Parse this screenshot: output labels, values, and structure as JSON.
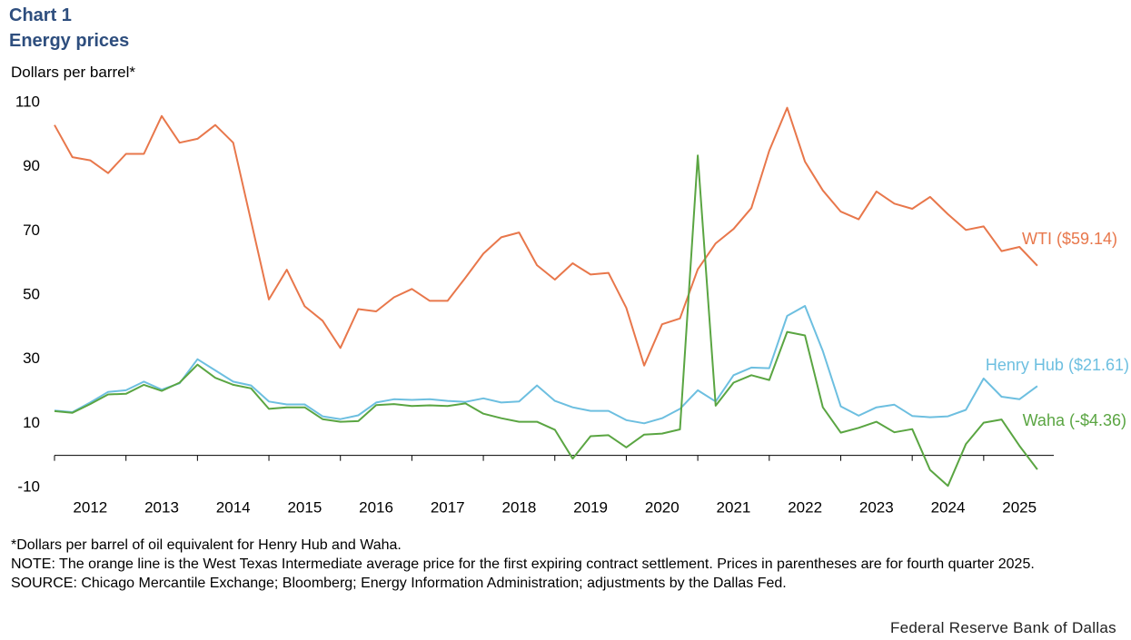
{
  "chart_data": {
    "type": "line",
    "title": "Chart 1",
    "subtitle": "Energy prices",
    "ylabel": "Dollars per barrel*",
    "categories": [
      "2012",
      null,
      null,
      null,
      "2013",
      null,
      null,
      null,
      "2014",
      null,
      null,
      null,
      "2015",
      null,
      null,
      null,
      "2016",
      null,
      null,
      null,
      "2017",
      null,
      null,
      null,
      "2018",
      null,
      null,
      null,
      "2019",
      null,
      null,
      null,
      "2020",
      null,
      null,
      null,
      "2021",
      null,
      null,
      null,
      "2022",
      null,
      null,
      null,
      "2023",
      null,
      null,
      null,
      "2024",
      null,
      null,
      null,
      "2025",
      null,
      null,
      null
    ],
    "series": [
      {
        "name": "WTI ($59.14)",
        "color": "#e8774b",
        "values": [
          103,
          93,
          92,
          88,
          94,
          94,
          105.8,
          97.5,
          98.7,
          103,
          97.5,
          73,
          48.6,
          57.9,
          46.5,
          42,
          33.5,
          45.6,
          44.9,
          49.3,
          51.9,
          48.2,
          48.2,
          55.4,
          62.9,
          68,
          69.5,
          59.3,
          54.8,
          59.9,
          56.4,
          56.9,
          46,
          28,
          40.9,
          42.7,
          58,
          66.1,
          70.6,
          77.1,
          95,
          108.4,
          91.6,
          82.6,
          76,
          73.6,
          82.3,
          78.5,
          76.9,
          80.6,
          75.2,
          70.3,
          71.4,
          63.7,
          65,
          59.14
        ]
      },
      {
        "name": "Henry Hub ($21.61)",
        "color": "#6dbfe0",
        "values": [
          14,
          13.5,
          16.5,
          19.8,
          20.3,
          23,
          20.5,
          22.5,
          30,
          26.5,
          23,
          21.8,
          16.8,
          15.9,
          15.9,
          12.2,
          11.3,
          12.5,
          16.5,
          17.5,
          17.3,
          17.5,
          17,
          16.7,
          17.8,
          16.5,
          16.8,
          21.8,
          17,
          15,
          13.9,
          13.9,
          11,
          10,
          11.6,
          14.5,
          20.3,
          16.8,
          25,
          27.4,
          27.2,
          43.5,
          46.6,
          32.5,
          15.3,
          12.4,
          15,
          15.8,
          12.3,
          11.9,
          12.2,
          14.2,
          24,
          18.3,
          17.5,
          21.61
        ]
      },
      {
        "name": "Waha (-$4.36)",
        "color": "#5aa542",
        "values": [
          13.8,
          13.3,
          16,
          19,
          19.2,
          22,
          20.1,
          22.7,
          28.3,
          24.2,
          22,
          20.9,
          14.5,
          15,
          15,
          11.3,
          10.5,
          10.7,
          15.7,
          16,
          15.4,
          15.6,
          15.4,
          16.2,
          13,
          11.6,
          10.5,
          10.5,
          8,
          -1,
          6,
          6.3,
          2.5,
          6.5,
          6.8,
          8.1,
          93.5,
          15.5,
          22.7,
          25,
          23.5,
          38.5,
          37.4,
          15,
          7.1,
          8.6,
          10.5,
          7.2,
          8.2,
          -4.5,
          -9.5,
          3.5,
          10.2,
          11.2,
          3,
          -4.36
        ]
      }
    ],
    "ylim": [
      -10,
      110
    ],
    "yticks": [
      -10,
      10,
      30,
      50,
      70,
      90,
      110
    ],
    "grid": false,
    "notes": [
      "*Dollars per barrel of oil equivalent for Henry Hub and Waha.",
      "NOTE: The orange line is the West Texas Intermediate average price for the first expiring contract settlement. Prices in parentheses are for fourth quarter 2025.",
      "SOURCE: Chicago Mercantile Exchange; Bloomberg; Energy Information Administration; adjustments by the Dallas Fed."
    ],
    "credit": "Federal Reserve Bank of Dallas"
  }
}
